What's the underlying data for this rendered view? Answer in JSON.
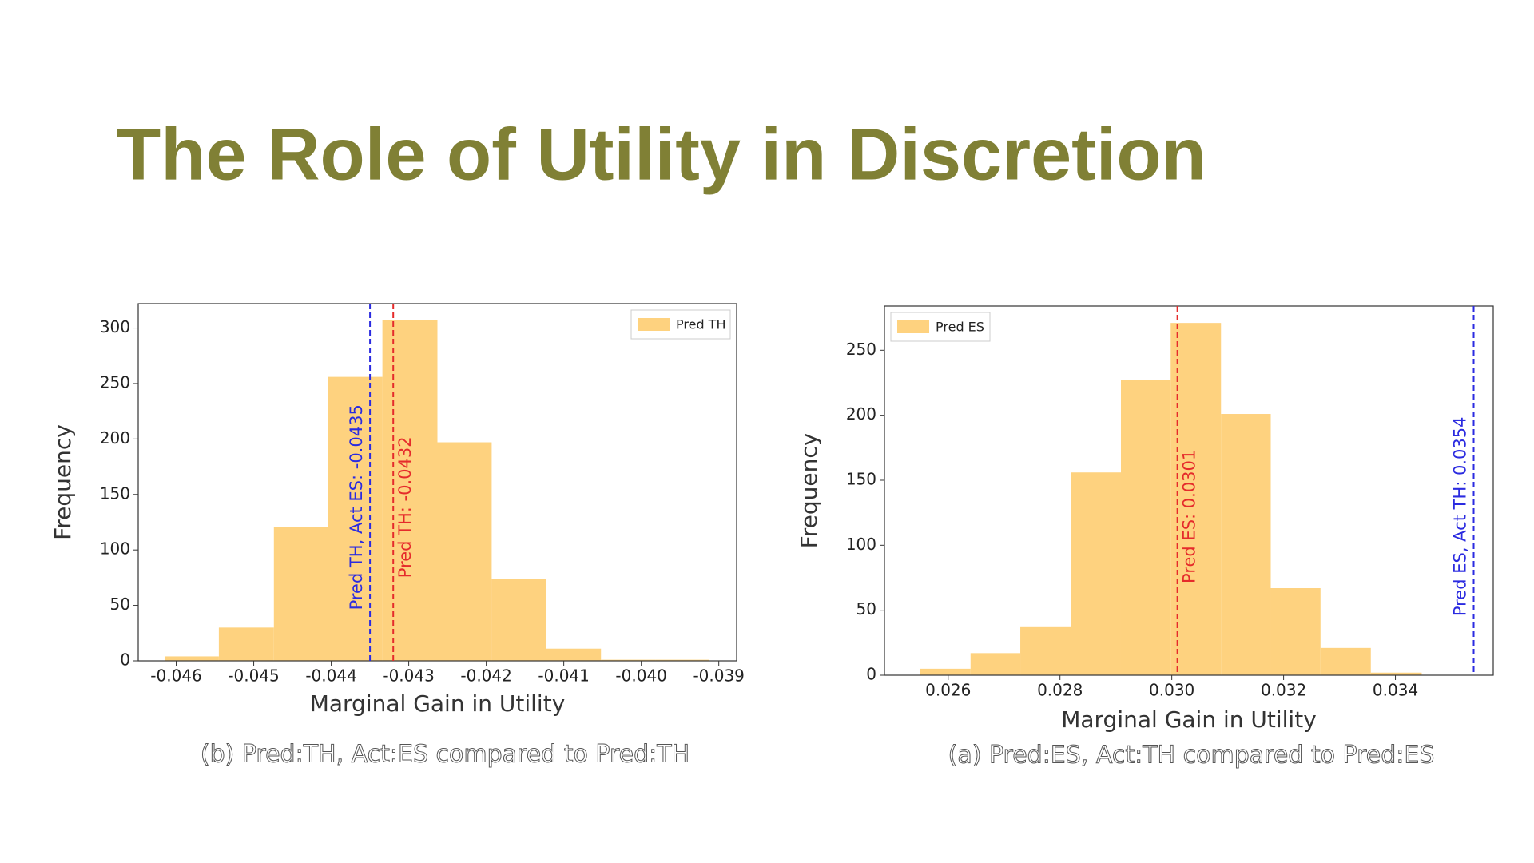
{
  "title": "The Role of Utility in Discretion",
  "chart_data": [
    {
      "type": "histogram",
      "caption": "(b) Pred:TH, Act:ES compared to Pred:TH",
      "x_label": "Marginal Gain in Utility",
      "y_label": "Frequency",
      "bins": [
        -0.04615,
        -0.04545,
        -0.04474,
        -0.04404,
        -0.04334,
        -0.04263,
        -0.04193,
        -0.04123,
        -0.04052,
        -0.03982,
        -0.03912
      ],
      "series": [
        {
          "name": "Pred TH",
          "color": "#fed27f",
          "values": [
            4,
            30,
            121,
            256,
            307,
            197,
            74,
            11,
            1,
            1
          ]
        }
      ],
      "xlim": [
        -0.04649,
        -0.03877
      ],
      "ylim": [
        0,
        322
      ],
      "xticks": [
        -0.046,
        -0.045,
        -0.044,
        -0.043,
        -0.042,
        -0.041,
        {
          "value": -0.04,
          "label": "-0.040"
        },
        -0.039
      ],
      "yticks": [
        0,
        50,
        100,
        150,
        200,
        250,
        300
      ],
      "legend": "upper right",
      "vlines": [
        {
          "value": -0.0435,
          "label": "Pred TH, Act ES: -0.0435",
          "color": "#2b2be0"
        },
        {
          "value": -0.0432,
          "label": "Pred TH: -0.0432",
          "color": "#e52b2b"
        }
      ]
    },
    {
      "type": "histogram",
      "caption": "(a) Pred:ES, Act:TH compared to Pred:ES",
      "x_label": "Marginal Gain in Utility",
      "y_label": "Frequency",
      "bins": [
        0.02549,
        0.0264,
        0.02729,
        0.0282,
        0.02909,
        0.02998,
        0.03088,
        0.03177,
        0.03266,
        0.03356,
        0.03447
      ],
      "series": [
        {
          "name": "Pred ES",
          "color": "#fed27f",
          "values": [
            5,
            17,
            37,
            156,
            227,
            271,
            201,
            67,
            21,
            2
          ]
        }
      ],
      "xlim": [
        0.02486,
        0.03575
      ],
      "ylim": [
        0,
        284
      ],
      "xticks": [
        0.026,
        0.028,
        {
          "value": 0.03,
          "label": "0.030"
        },
        0.032,
        0.034
      ],
      "yticks": [
        0,
        50,
        100,
        150,
        200,
        250
      ],
      "legend": "upper left",
      "vlines": [
        {
          "value": 0.0301,
          "label": "Pred ES: 0.0301",
          "color": "#e52b2b"
        },
        {
          "value": 0.0354,
          "label": "Pred ES, Act TH: 0.0354",
          "color": "#2b2be0"
        }
      ]
    }
  ]
}
